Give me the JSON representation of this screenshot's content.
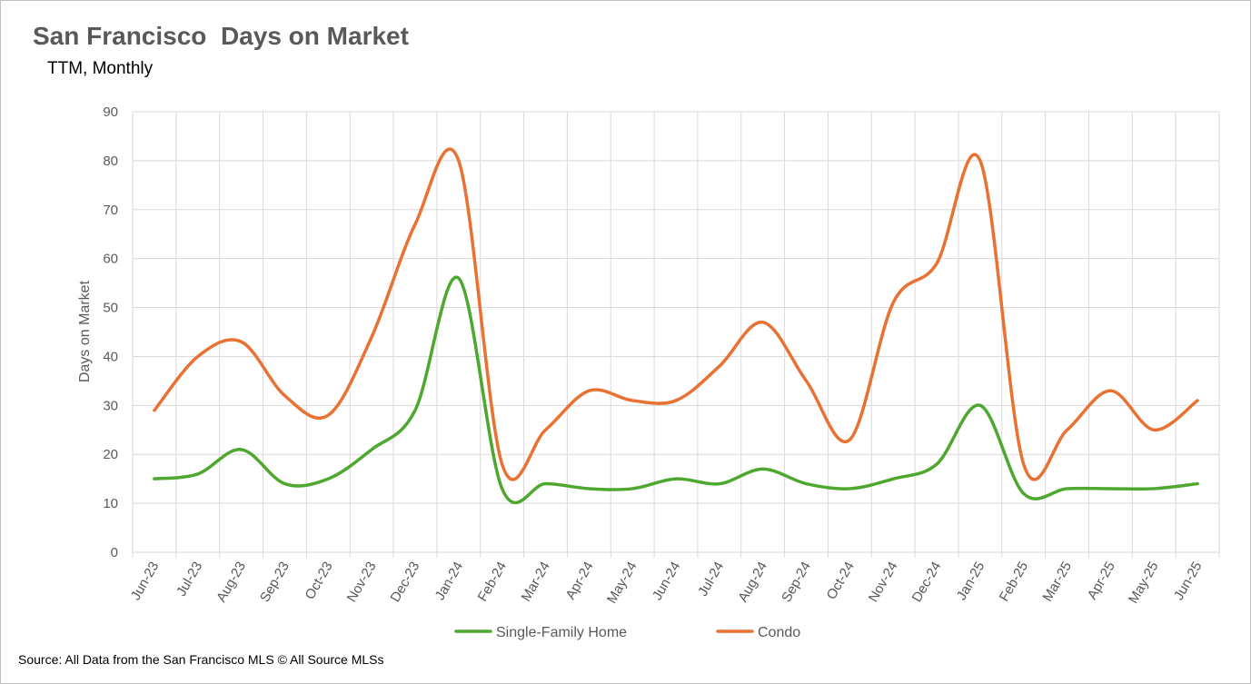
{
  "chart_data": {
    "type": "line",
    "title": "San Francisco  Days on Market",
    "subtitle": "TTM, Monthly",
    "ylabel": "Days on Market",
    "xlabel": "",
    "ylim": [
      0,
      90
    ],
    "yticks": [
      0,
      10,
      20,
      30,
      40,
      50,
      60,
      70,
      80,
      90
    ],
    "grid": true,
    "legend": "bottom",
    "categories": [
      "Jun-23",
      "Jul-23",
      "Aug-23",
      "Sep-23",
      "Oct-23",
      "Nov-23",
      "Dec-23",
      "Jan-24",
      "Feb-24",
      "Mar-24",
      "Apr-24",
      "May-24",
      "Jun-24",
      "Jul-24",
      "Aug-24",
      "Sep-24",
      "Oct-24",
      "Nov-24",
      "Dec-24",
      "Jan-25",
      "Feb-25",
      "Mar-25",
      "Apr-25",
      "May-25",
      "Jun-25"
    ],
    "series": [
      {
        "name": "Single-Family Home",
        "color": "#4ea72e",
        "values": [
          15,
          16,
          21,
          14,
          15,
          21,
          29,
          56,
          13,
          14,
          13,
          13,
          15,
          14,
          17,
          14,
          13,
          15,
          18,
          30,
          12,
          13,
          13,
          13,
          14
        ]
      },
      {
        "name": "Condo",
        "color": "#e97132",
        "values": [
          29,
          40,
          43,
          32,
          28,
          44,
          67,
          80,
          18,
          25,
          33,
          31,
          31,
          38,
          47,
          35,
          23,
          51,
          59,
          80,
          18,
          25,
          33,
          25,
          31
        ]
      }
    ]
  },
  "source": "Source: All Data from the San Francisco MLS © All Source MLSs"
}
